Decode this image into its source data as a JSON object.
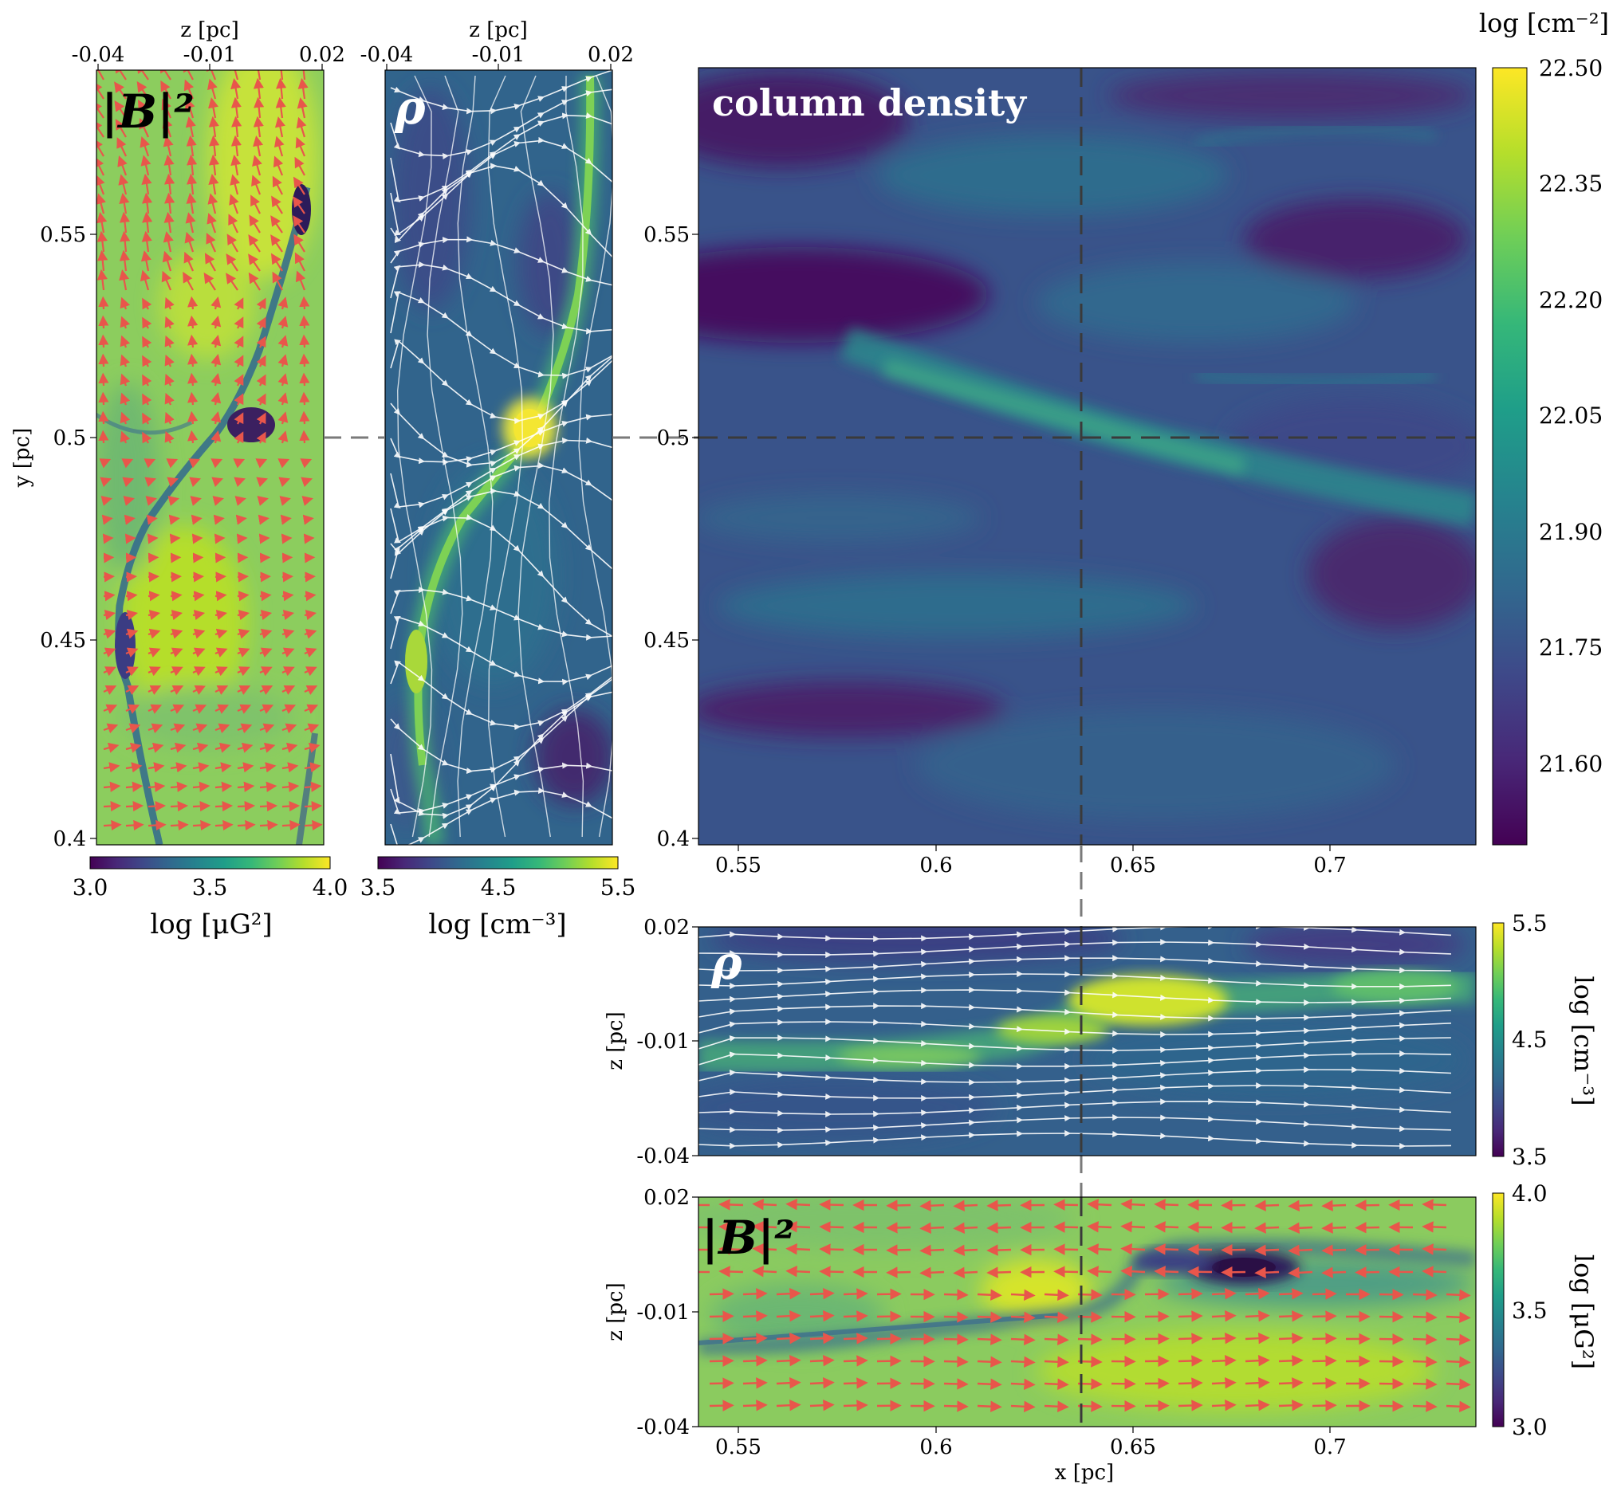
{
  "colors": {
    "viridis": [
      "#440154",
      "#482878",
      "#3e4989",
      "#31688e",
      "#26828e",
      "#1f9e89",
      "#35b779",
      "#6ece58",
      "#b5de2b",
      "#fde725"
    ],
    "dark_end": "#3b1b56",
    "arrow_color": "#e8564b",
    "stream_color": "#ffffff",
    "crosshair_color": "#3a3a3a"
  },
  "chart_data": [
    {
      "id": "B2_yz",
      "type": "heatmap",
      "label": "|B|²",
      "top_axis": {
        "label": "z [pc]",
        "ticks": [
          "-0.04",
          "-0.01",
          "0.02"
        ]
      },
      "y_axis": {
        "label": "y [pc]",
        "ticks": [
          "0.55",
          "0.5",
          "0.45",
          "0.4"
        ],
        "ylim": [
          0.398,
          0.59
        ]
      },
      "colorbar": {
        "label": "log [μG²]",
        "ticks": [
          "3.0",
          "3.5",
          "4.0"
        ],
        "range": [
          3.0,
          4.0
        ]
      },
      "overlay": "field vectors (arrows)"
    },
    {
      "id": "rho_yz",
      "type": "heatmap",
      "label": "ρ",
      "top_axis": {
        "label": "z [pc]",
        "ticks": [
          "-0.04",
          "-0.01",
          "0.02"
        ]
      },
      "colorbar": {
        "label": "log [cm⁻³]",
        "ticks": [
          "3.5",
          "4.5",
          "5.5"
        ],
        "range": [
          3.5,
          5.5
        ]
      },
      "overlay": "streamlines"
    },
    {
      "id": "column_density",
      "type": "heatmap",
      "label": "column density",
      "x_axis": {
        "ticks": [
          "0.55",
          "0.6",
          "0.65",
          "0.7"
        ],
        "xlim": [
          0.54,
          0.737
        ]
      },
      "y_axis": {
        "ticks": [
          "0.55",
          "0.5",
          "0.45",
          "0.4"
        ],
        "ylim": [
          0.398,
          0.59
        ]
      },
      "colorbar": {
        "label": "log [cm⁻²]",
        "ticks": [
          "22.50",
          "22.35",
          "22.20",
          "22.05",
          "21.90",
          "21.75",
          "21.60"
        ],
        "range": [
          21.53,
          22.5
        ]
      },
      "crosshair": {
        "x": 0.636,
        "y": 0.5
      }
    },
    {
      "id": "rho_xz",
      "type": "heatmap",
      "label": "ρ",
      "y_axis": {
        "label": "z [pc]",
        "ticks": [
          "0.02",
          "-0.01",
          "-0.04"
        ]
      },
      "colorbar": {
        "label": "log [cm⁻³]",
        "ticks": [
          "5.5",
          "4.5",
          "3.5"
        ],
        "range": [
          3.5,
          5.5
        ]
      },
      "overlay": "streamlines"
    },
    {
      "id": "B2_xz",
      "type": "heatmap",
      "label": "|B|²",
      "x_axis": {
        "label": "x [pc]",
        "ticks": [
          "0.55",
          "0.6",
          "0.65",
          "0.7"
        ],
        "xlim": [
          0.54,
          0.737
        ]
      },
      "y_axis": {
        "label": "z [pc]",
        "ticks": [
          "0.02",
          "-0.01",
          "-0.04"
        ]
      },
      "colorbar": {
        "label": "log [μG²]",
        "ticks": [
          "4.0",
          "3.5",
          "3.0"
        ],
        "range": [
          3.0,
          4.0
        ]
      },
      "overlay": "field vectors (arrows)"
    }
  ]
}
